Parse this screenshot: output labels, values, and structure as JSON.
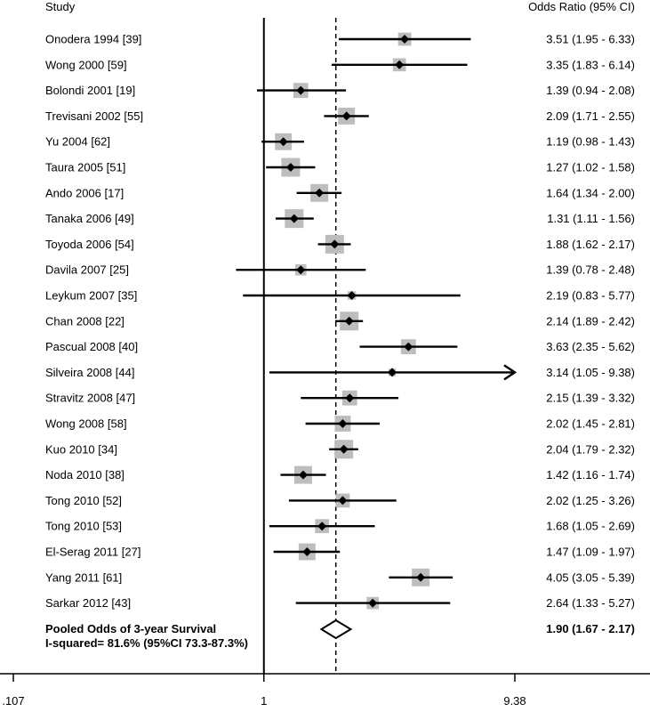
{
  "chart_data": {
    "type": "forest",
    "headers": {
      "study": "Study",
      "ci": "Odds Ratio (95% CI)"
    },
    "x_scale": "log",
    "x_ticks": [
      {
        "value": 0.107,
        "label": ".107"
      },
      {
        "value": 1,
        "label": "1"
      },
      {
        "value": 9.38,
        "label": "9.38"
      }
    ],
    "x_range": [
      0.107,
      9.38
    ],
    "studies": [
      {
        "label": "Onodera 1994 [39]",
        "or": 3.51,
        "lower": 1.95,
        "upper": 6.33,
        "weight": 0.7,
        "ci_text": "3.51 (1.95 - 6.33)"
      },
      {
        "label": "Wong 2000 [59]",
        "or": 3.35,
        "lower": 1.83,
        "upper": 6.14,
        "weight": 0.7,
        "ci_text": "3.35 (1.83 - 6.14)"
      },
      {
        "label": "Bolondi 2001 [19]",
        "or": 1.39,
        "lower": 0.94,
        "upper": 2.08,
        "weight": 0.8,
        "ci_text": "1.39 (0.94 - 2.08)"
      },
      {
        "label": "Trevisani 2002 [55]",
        "or": 2.09,
        "lower": 1.71,
        "upper": 2.55,
        "weight": 0.9,
        "ci_text": "2.09 (1.71 - 2.55)"
      },
      {
        "label": "Yu 2004 [62]",
        "or": 1.19,
        "lower": 0.98,
        "upper": 1.43,
        "weight": 0.9,
        "ci_text": "1.19 (0.98 - 1.43)"
      },
      {
        "label": "Taura 2005 [51]",
        "or": 1.27,
        "lower": 1.02,
        "upper": 1.58,
        "weight": 1.0,
        "ci_text": "1.27 (1.02 - 1.58)"
      },
      {
        "label": "Ando 2006 [17]",
        "or": 1.64,
        "lower": 1.34,
        "upper": 2.0,
        "weight": 0.95,
        "ci_text": "1.64 (1.34 - 2.00)"
      },
      {
        "label": "Tanaka 2006 [49]",
        "or": 1.31,
        "lower": 1.11,
        "upper": 1.56,
        "weight": 1.0,
        "ci_text": "1.31 (1.11 - 1.56)"
      },
      {
        "label": "Toyoda 2006 [54]",
        "or": 1.88,
        "lower": 1.62,
        "upper": 2.17,
        "weight": 1.0,
        "ci_text": "1.88 (1.62 - 2.17)"
      },
      {
        "label": "Davila 2007 [25]",
        "or": 1.39,
        "lower": 0.78,
        "upper": 2.48,
        "weight": 0.6,
        "ci_text": "1.39 (0.78 - 2.48)"
      },
      {
        "label": "Leykum 2007 [35]",
        "or": 2.19,
        "lower": 0.83,
        "upper": 5.77,
        "weight": 0.45,
        "ci_text": "2.19 (0.83 - 5.77)"
      },
      {
        "label": "Chan 2008 [22]",
        "or": 2.14,
        "lower": 1.89,
        "upper": 2.42,
        "weight": 1.0,
        "ci_text": "2.14 (1.89 - 2.42)"
      },
      {
        "label": "Pascual 2008 [40]",
        "or": 3.63,
        "lower": 2.35,
        "upper": 5.62,
        "weight": 0.8,
        "ci_text": "3.63 (2.35 - 5.62)"
      },
      {
        "label": "Silveira 2008 [44]",
        "or": 3.14,
        "lower": 1.05,
        "upper": 9.38,
        "weight": 0.4,
        "ci_text": "3.14 (1.05 - 9.38)",
        "arrow_right": true
      },
      {
        "label": "Stravitz 2008 [47]",
        "or": 2.15,
        "lower": 1.39,
        "upper": 3.32,
        "weight": 0.8,
        "ci_text": "2.15 (1.39 - 3.32)"
      },
      {
        "label": "Wong 2008 [58]",
        "or": 2.02,
        "lower": 1.45,
        "upper": 2.81,
        "weight": 0.85,
        "ci_text": "2.02 (1.45 - 2.81)"
      },
      {
        "label": "Kuo 2010 [34]",
        "or": 2.04,
        "lower": 1.79,
        "upper": 2.32,
        "weight": 1.0,
        "ci_text": "2.04 (1.79 - 2.32)"
      },
      {
        "label": "Noda 2010 [38]",
        "or": 1.42,
        "lower": 1.16,
        "upper": 1.74,
        "weight": 0.95,
        "ci_text": "1.42 (1.16 - 1.74)"
      },
      {
        "label": "Tong 2010 [52]",
        "or": 2.02,
        "lower": 1.25,
        "upper": 3.26,
        "weight": 0.75,
        "ci_text": "2.02 (1.25 - 3.26)"
      },
      {
        "label": "Tong 2010 [53]",
        "or": 1.68,
        "lower": 1.05,
        "upper": 2.69,
        "weight": 0.75,
        "ci_text": "1.68 (1.05 - 2.69)"
      },
      {
        "label": "El-Serag 2011 [27]",
        "or": 1.47,
        "lower": 1.09,
        "upper": 1.97,
        "weight": 0.9,
        "ci_text": "1.47 (1.09 - 1.97)"
      },
      {
        "label": "Yang 2011 [61]",
        "or": 4.05,
        "lower": 3.05,
        "upper": 5.39,
        "weight": 0.95,
        "ci_text": "4.05 (3.05 - 5.39)"
      },
      {
        "label": "Sarkar 2012 [43]",
        "or": 2.64,
        "lower": 1.33,
        "upper": 5.27,
        "weight": 0.65,
        "ci_text": "2.64 (1.33 - 5.27)"
      }
    ],
    "pooled": {
      "label_line1": "Pooled Odds of 3-year Survival",
      "label_line2": "I-squared= 81.6% (95%CI 73.3-87.3%)",
      "or": 1.9,
      "lower": 1.67,
      "upper": 2.17,
      "ci_text": "1.90 (1.67 - 2.17)"
    },
    "colors": {
      "box": "#bdbdbd",
      "line": "#000000"
    }
  }
}
